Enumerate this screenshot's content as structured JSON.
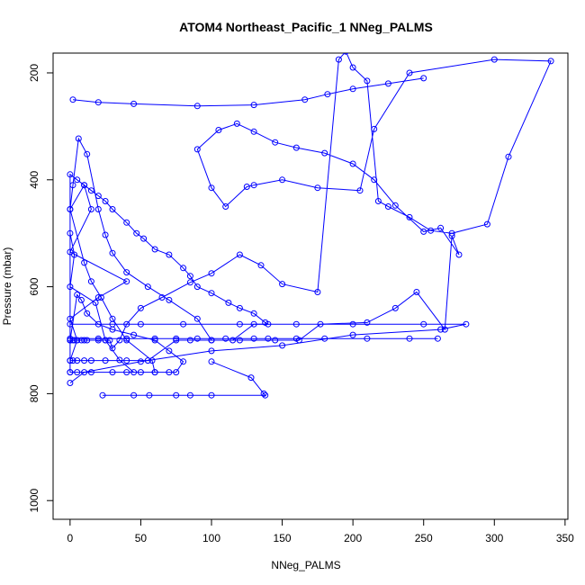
{
  "chart_data": {
    "type": "line",
    "title": "ATOM4 Northeast_Pacific_1 NNeg_PALMS",
    "xlabel": "NNeg_PALMS",
    "ylabel": "Pressure (mbar)",
    "xlim": [
      -12,
      352
    ],
    "ylim": [
      1035,
      163
    ],
    "y_reversed": true,
    "x_ticks": [
      0,
      50,
      100,
      150,
      200,
      250,
      300,
      350
    ],
    "y_ticks": [
      200,
      400,
      600,
      800,
      1000
    ],
    "grid": false,
    "legend": "none",
    "color": "#0000ff",
    "markers": "open-circle",
    "series": [
      {
        "x": [
          0,
          0,
          5,
          0,
          20,
          40,
          0,
          15,
          10,
          0,
          0,
          3,
          0,
          18,
          25,
          35,
          45,
          60,
          58,
          40,
          30,
          22,
          15,
          10,
          0,
          2,
          6,
          12,
          20,
          25,
          30,
          40,
          55,
          70,
          90,
          100,
          120,
          145,
          162,
          177,
          210,
          230,
          245,
          265,
          270,
          275,
          262,
          250,
          230,
          215,
          200,
          180,
          160,
          145,
          130,
          118,
          105,
          90,
          100,
          110,
          125,
          130,
          150,
          175,
          205,
          215,
          240,
          300,
          340,
          310,
          295,
          270,
          255,
          240,
          225,
          218,
          210,
          200,
          195,
          190,
          175,
          150,
          135,
          120,
          100,
          85,
          65,
          50,
          40,
          35,
          30,
          28,
          25,
          20,
          12,
          10,
          8,
          5,
          3,
          2,
          0,
          0,
          2,
          5,
          10,
          15,
          25,
          40,
          55,
          75,
          85,
          100,
          115,
          130,
          140,
          138,
          130,
          120,
          112,
          100,
          90,
          85,
          80,
          70,
          60,
          52,
          47,
          40,
          30,
          25,
          20,
          15,
          10,
          5,
          0,
          0,
          0,
          5,
          15,
          30,
          40,
          50,
          60,
          70,
          75,
          80,
          70,
          60,
          45,
          30,
          20,
          12,
          8,
          5,
          0
        ],
        "y": [
          760,
          738,
          700,
          660,
          620,
          590,
          535,
          455,
          410,
          455,
          500,
          540,
          600,
          630,
          700,
          737,
          760,
          760,
          738,
          700,
          660,
          620,
          590,
          555,
          455,
          410,
          323,
          352,
          455,
          503,
          537,
          573,
          600,
          625,
          660,
          700,
          700,
          700,
          700,
          670,
          667,
          640,
          610,
          680,
          505,
          540,
          490,
          497,
          448,
          400,
          370,
          350,
          340,
          330,
          310,
          295,
          307,
          343,
          415,
          450,
          413,
          410,
          400,
          415,
          420,
          305,
          200,
          175,
          178,
          357,
          483,
          500,
          495,
          470,
          450,
          440,
          215,
          190,
          160,
          175,
          610,
          595,
          560,
          540,
          575,
          592,
          620,
          640,
          670,
          700,
          715,
          700,
          700,
          700,
          700,
          700,
          700,
          700,
          700,
          700,
          700,
          738,
          738,
          738,
          738,
          738,
          738,
          738,
          738,
          700,
          700,
          700,
          700,
          670,
          670,
          667,
          650,
          640,
          630,
          612,
          600,
          580,
          565,
          540,
          530,
          510,
          500,
          480,
          455,
          440,
          430,
          420,
          410,
          400,
          390,
          700,
          760,
          760,
          760,
          760,
          760,
          760,
          760,
          760,
          760,
          740,
          720,
          700,
          690,
          680,
          670,
          650,
          625,
          615,
          700
        ]
      },
      {
        "x": [
          23,
          45,
          56,
          75,
          85,
          100,
          138,
          137,
          128,
          100
        ],
        "y": [
          803,
          803,
          803,
          803,
          803,
          803,
          803,
          800,
          770,
          740
        ]
      },
      {
        "x": [
          0,
          20,
          40,
          60,
          75,
          90,
          110,
          130,
          140,
          160,
          180,
          210,
          240,
          260
        ],
        "y": [
          697,
          697,
          697,
          697,
          697,
          697,
          697,
          697,
          697,
          697,
          697,
          697,
          697,
          697
        ]
      },
      {
        "x": [
          0,
          30,
          50,
          80,
          120,
          160,
          200,
          250,
          280,
          262,
          200,
          150,
          100,
          50,
          10,
          0
        ],
        "y": [
          670,
          670,
          670,
          670,
          670,
          670,
          670,
          670,
          670,
          680,
          690,
          710,
          720,
          740,
          760,
          780
        ]
      },
      {
        "x": [
          2,
          20,
          45,
          90,
          130,
          166,
          182,
          200,
          225,
          250
        ],
        "y": [
          250,
          255,
          258,
          262,
          260,
          250,
          240,
          230,
          220,
          210
        ]
      }
    ]
  }
}
